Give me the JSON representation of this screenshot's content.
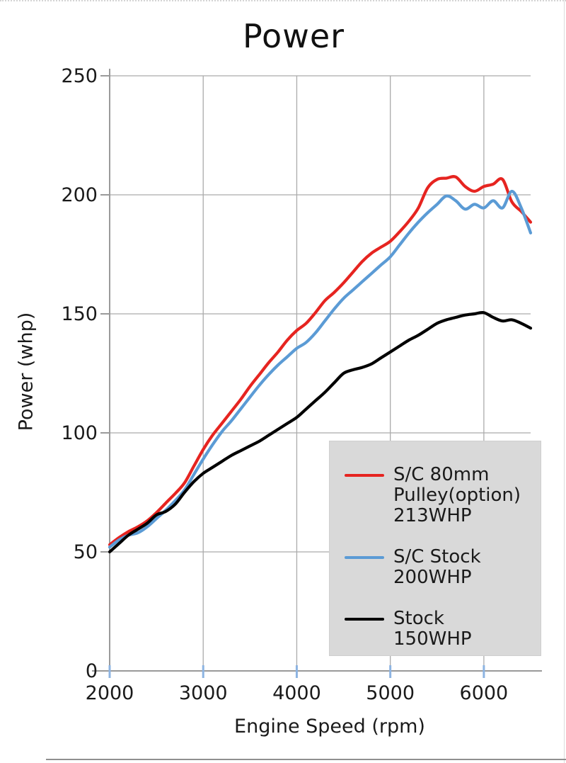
{
  "title": "Power",
  "chart_data": {
    "type": "line",
    "title": "Power",
    "xlabel": "Engine Speed (rpm)",
    "ylabel": "Power (whp)",
    "xlim": [
      2000,
      6500
    ],
    "ylim": [
      0,
      250
    ],
    "x_ticks": [
      2000,
      3000,
      4000,
      5000,
      6000
    ],
    "y_ticks": [
      0,
      50,
      100,
      150,
      200,
      250
    ],
    "grid": true,
    "legend_position": "lower right",
    "legend_bg": "#d9d9d9",
    "x": [
      2000,
      2100,
      2200,
      2300,
      2400,
      2500,
      2600,
      2700,
      2800,
      2900,
      3000,
      3100,
      3200,
      3300,
      3400,
      3500,
      3600,
      3700,
      3800,
      3900,
      4000,
      4100,
      4200,
      4300,
      4400,
      4500,
      4600,
      4700,
      4800,
      4900,
      5000,
      5100,
      5200,
      5300,
      5400,
      5500,
      5600,
      5700,
      5800,
      5900,
      6000,
      6100,
      6200,
      6300,
      6400,
      6500
    ],
    "series": [
      {
        "name": "S/C 80mm Pulley(option) 213WHP",
        "legend_lines": "S/C 80mm\nPulley(option)\n213WHP",
        "color": "#e62420",
        "values": [
          53,
          56,
          58.5,
          60.5,
          63,
          66.5,
          70.5,
          74.5,
          79,
          86,
          93,
          99,
          104,
          109,
          114,
          119.5,
          124.5,
          129.5,
          134,
          139,
          143,
          146,
          150.5,
          155.5,
          159,
          163,
          167.5,
          172,
          175.5,
          178,
          180.5,
          184.5,
          189,
          194.5,
          203,
          206.5,
          207,
          207.5,
          203.5,
          201.5,
          203.5,
          204.5,
          206.5,
          197,
          193,
          188.5
        ]
      },
      {
        "name": "S/C Stock 200WHP",
        "legend_lines": "S/C Stock\n200WHP",
        "color": "#5b9bd5",
        "values": [
          52,
          55,
          57,
          58,
          60.5,
          64,
          67.5,
          71.5,
          76,
          82.5,
          89,
          95,
          100.5,
          105,
          110,
          115,
          120,
          124.5,
          128.5,
          132,
          135.5,
          138,
          142,
          147,
          152,
          156.5,
          160,
          163.5,
          167,
          170.5,
          174,
          179,
          184,
          188.5,
          192.5,
          196,
          199.5,
          197.5,
          194,
          196,
          194.5,
          197.5,
          194.5,
          201.5,
          194.5,
          184
        ]
      },
      {
        "name": "Stock 150WHP",
        "legend_lines": "Stock\n150WHP",
        "color": "#000000",
        "values": [
          50,
          53.5,
          57,
          59.5,
          62,
          65.5,
          67,
          70,
          75,
          79.5,
          83,
          85.5,
          88,
          90.5,
          92.5,
          94.5,
          96.5,
          99,
          101.5,
          104,
          106.5,
          110,
          113.5,
          117,
          121,
          125,
          126.5,
          127.5,
          129,
          131.5,
          134,
          136.5,
          139,
          141,
          143.5,
          146,
          147.5,
          148.5,
          149.5,
          150,
          150.5,
          148.5,
          147,
          147.5,
          146,
          144
        ]
      }
    ]
  },
  "colors": {
    "gridline": "#ababab",
    "axis": "#9a9a9a",
    "x_tick": "#8db4e2",
    "y_tick": "#9a9a9a",
    "text": "#1a1a1a"
  }
}
